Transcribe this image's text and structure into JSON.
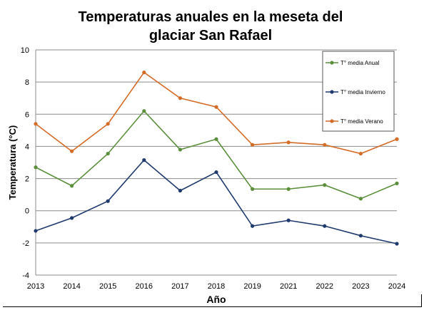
{
  "chart_data": {
    "type": "line",
    "title_line1": "Temperaturas anuales en la meseta del",
    "title_line2": "glaciar San Rafael",
    "xlabel": "Año",
    "ylabel": "Temperatura (°C)",
    "ylim": [
      -4,
      10
    ],
    "yticks": [
      -4,
      -2,
      0,
      2,
      4,
      6,
      8,
      10
    ],
    "grid": true,
    "legend_position": "top-right",
    "categories": [
      "2013",
      "2014",
      "2015",
      "2016",
      "2017",
      "2018",
      "2019",
      "2021",
      "2022",
      "2023",
      "2024"
    ],
    "series": [
      {
        "name": "T° media Anual",
        "color": "#5b8f3c",
        "values": [
          2.7,
          1.55,
          3.55,
          6.2,
          3.8,
          4.45,
          1.35,
          1.35,
          1.6,
          0.75,
          1.7
        ]
      },
      {
        "name": "T° media Invierno",
        "color": "#1f3a6e",
        "values": [
          -1.25,
          -0.45,
          0.6,
          3.15,
          1.25,
          2.4,
          -0.95,
          -0.6,
          -0.95,
          -1.55,
          -2.05
        ]
      },
      {
        "name": "T° media Verano",
        "color": "#d46b27",
        "values": [
          5.4,
          3.7,
          5.4,
          8.6,
          7.0,
          6.45,
          4.1,
          4.25,
          4.1,
          3.55,
          4.45
        ]
      }
    ]
  }
}
